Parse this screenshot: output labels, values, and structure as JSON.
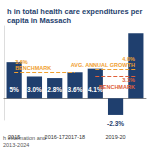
{
  "chart_data": {
    "type": "bar",
    "title": "h in total health care expenditures per capita in Massach",
    "categories": [
      "2015",
      null,
      "2016-17",
      "2017-18",
      null,
      "2019-20",
      null
    ],
    "values": [
      5,
      3.0,
      2.8,
      3.6,
      4.1,
      -2.3,
      9.0
    ],
    "value_labels": [
      "5%",
      "3.0%",
      "2.8%",
      "3.6%",
      "4.1%",
      "-2.3%",
      null
    ],
    "data_labels": true,
    "color": "#1f3f6e",
    "ylim": [
      -3,
      10
    ],
    "tick_labels": "x",
    "grid": false,
    "annotations": [
      {
        "text": "3.6%\nBENCHMARK",
        "value": 3.6,
        "span": [
          0,
          3
        ],
        "color": "#f0a030"
      },
      {
        "text": "4.0%\nAVG. ANNUAL GROWTH",
        "value": 4.0,
        "span": [
          4,
          6
        ],
        "color": "#f0a030"
      },
      {
        "text": "3.1%\nBENCHMARK",
        "value": 3.1,
        "span": [
          4,
          6
        ],
        "color": "#e0603a"
      }
    ],
    "source": [
      "h Information and",
      "2013-2024"
    ]
  }
}
